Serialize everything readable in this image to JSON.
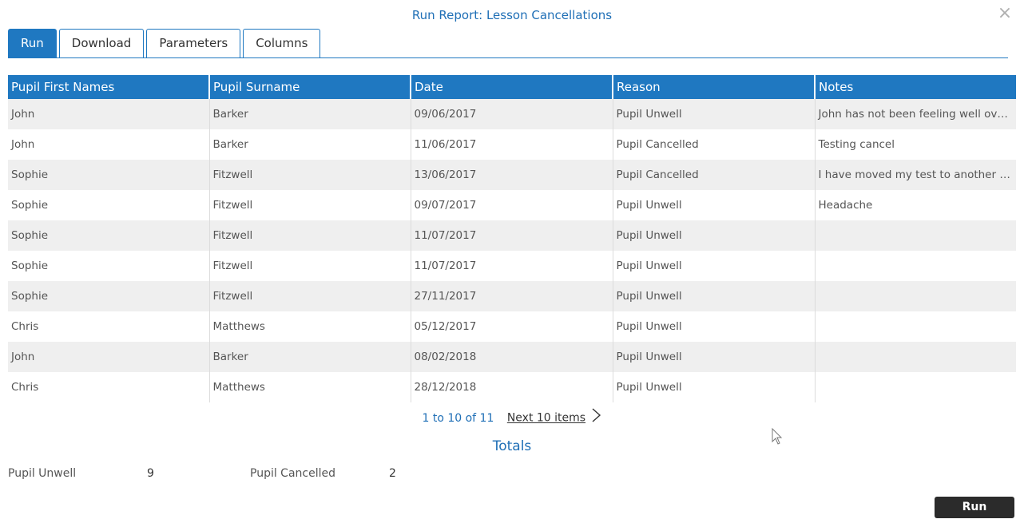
{
  "dialog": {
    "title": "Run Report: Lesson Cancellations",
    "close_glyph": "×"
  },
  "tabs": [
    {
      "label": "Run",
      "active": true
    },
    {
      "label": "Download",
      "active": false
    },
    {
      "label": "Parameters",
      "active": false
    },
    {
      "label": "Columns",
      "active": false
    }
  ],
  "table": {
    "headers": [
      "Pupil First Names",
      "Pupil Surname",
      "Date",
      "Reason",
      "Notes"
    ],
    "rows": [
      [
        "John",
        "Barker",
        "09/06/2017",
        "Pupil Unwell",
        "John has not been feeling well over ..."
      ],
      [
        "John",
        "Barker",
        "11/06/2017",
        "Pupil Cancelled",
        "Testing cancel"
      ],
      [
        "Sophie",
        "Fitzwell",
        "13/06/2017",
        "Pupil Cancelled",
        "I have moved my test to another day"
      ],
      [
        "Sophie",
        "Fitzwell",
        "09/07/2017",
        "Pupil Unwell",
        "Headache"
      ],
      [
        "Sophie",
        "Fitzwell",
        "11/07/2017",
        "Pupil Unwell",
        ""
      ],
      [
        "Sophie",
        "Fitzwell",
        "11/07/2017",
        "Pupil Unwell",
        ""
      ],
      [
        "Sophie",
        "Fitzwell",
        "27/11/2017",
        "Pupil Unwell",
        ""
      ],
      [
        "Chris",
        "Matthews",
        "05/12/2017",
        "Pupil Unwell",
        ""
      ],
      [
        "John",
        "Barker",
        "08/02/2018",
        "Pupil Unwell",
        ""
      ],
      [
        "Chris",
        "Matthews",
        "28/12/2018",
        "Pupil Unwell",
        ""
      ]
    ]
  },
  "pager": {
    "range": "1 to 10 of 11",
    "next_label": "Next 10 items",
    "next_icon": "chevron-right-icon"
  },
  "totals": {
    "heading": "Totals",
    "items": [
      {
        "label": "Pupil Unwell",
        "value": "9"
      },
      {
        "label": "Pupil Cancelled",
        "value": "2"
      }
    ]
  },
  "footer": {
    "run_label": "Run"
  },
  "colors": {
    "accent": "#1f78c1",
    "link_text": "#1f6fb6",
    "run_button": "#2b2b2b",
    "row_alt": "#efefef"
  }
}
